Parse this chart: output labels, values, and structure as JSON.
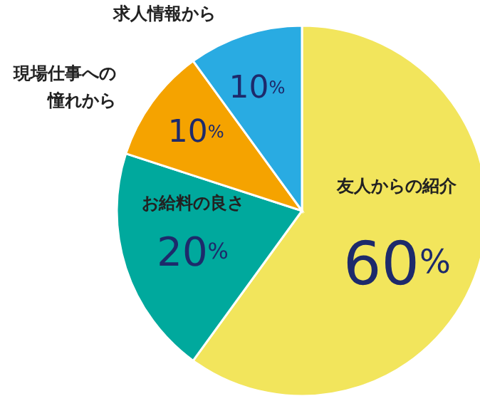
{
  "chart_data": {
    "type": "pie",
    "categories": [
      "友人からの紹介",
      "お給料の良さ",
      "現場仕事への憧れから",
      "求人情報から"
    ],
    "values": [
      60,
      20,
      10,
      10
    ],
    "colors": [
      "#f2e55c",
      "#00a99d",
      "#f5a300",
      "#29abe2"
    ],
    "value_labels": [
      "60%",
      "20%",
      "10%",
      "10%"
    ],
    "legend": false
  }
}
